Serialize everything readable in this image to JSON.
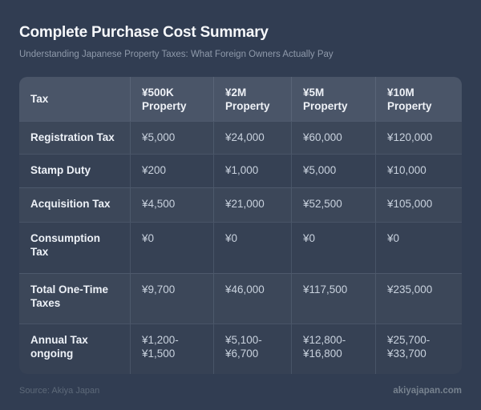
{
  "header": {
    "title": "Complete Purchase Cost Summary",
    "subtitle": "Understanding Japanese Property Taxes: What Foreign Owners Actually Pay"
  },
  "table": {
    "columns": [
      "Tax",
      "¥500K\nProperty",
      "¥2M\nProperty",
      "¥5M\nProperty",
      "¥10M\nProperty"
    ],
    "rows": [
      {
        "label": "Registration Tax",
        "values": [
          "¥5,000",
          "¥24,000",
          "¥60,000",
          "¥120,000"
        ]
      },
      {
        "label": "Stamp Duty",
        "values": [
          "¥200",
          "¥1,000",
          "¥5,000",
          "¥10,000"
        ]
      },
      {
        "label": "Acquisition Tax",
        "values": [
          "¥4,500",
          "¥21,000",
          "¥52,500",
          "¥105,000"
        ]
      },
      {
        "label": "Consumption\nTax",
        "values": [
          "¥0",
          "¥0",
          "¥0",
          "¥0"
        ]
      },
      {
        "label": "Total One-Time\nTaxes",
        "values": [
          "¥9,700",
          "¥46,000",
          "¥117,500",
          "¥235,000"
        ]
      },
      {
        "label": "Annual Tax\nongoing",
        "values": [
          "¥1,200-\n¥1,500",
          "¥5,100-\n¥6,700",
          "¥12,800-\n¥16,800",
          "¥25,700-\n¥33,700"
        ]
      }
    ]
  },
  "footer": {
    "source": "Source: Akiya Japan",
    "site": "akiyajapan.com"
  },
  "colors": {
    "page_background": "#313d52",
    "header_row": "#4a5568",
    "row_light": "#3c4759",
    "row_dark": "#364154",
    "title_text": "#f6f8fb",
    "subtitle_text": "#8f9aab",
    "value_text": "#c9d2de",
    "footer_text": "#5d6979"
  },
  "chart_data": {
    "type": "table",
    "title": "Complete Purchase Cost Summary",
    "subtitle": "Understanding Japanese Property Taxes: What Foreign Owners Actually Pay",
    "columns": [
      "Tax",
      "¥500K Property",
      "¥2M Property",
      "¥5M Property",
      "¥10M Property"
    ],
    "rows": [
      [
        "Registration Tax",
        "¥5,000",
        "¥24,000",
        "¥60,000",
        "¥120,000"
      ],
      [
        "Stamp Duty",
        "¥200",
        "¥1,000",
        "¥5,000",
        "¥10,000"
      ],
      [
        "Acquisition Tax",
        "¥4,500",
        "¥21,000",
        "¥52,500",
        "¥105,000"
      ],
      [
        "Consumption Tax",
        "¥0",
        "¥0",
        "¥0",
        "¥0"
      ],
      [
        "Total One-Time Taxes",
        "¥9,700",
        "¥46,000",
        "¥117,500",
        "¥235,000"
      ],
      [
        "Annual Tax ongoing",
        "¥1,200-¥1,500",
        "¥5,100-¥6,700",
        "¥12,800-¥16,800",
        "¥25,700-¥33,700"
      ]
    ],
    "source": "Akiya Japan",
    "website": "akiyajapan.com"
  }
}
